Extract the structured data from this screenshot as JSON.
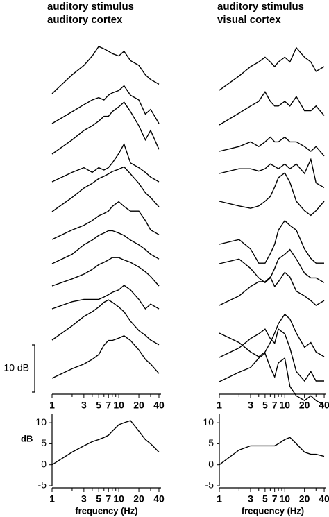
{
  "chart_data": [
    {
      "type": "line",
      "title": "auditory stimulus",
      "subtitle": "auditory cortex",
      "xscale": "log",
      "xlim": [
        1,
        43
      ],
      "xticks": [
        1,
        3,
        5,
        7,
        10,
        20,
        40
      ],
      "xminorticks": [
        2,
        4,
        6,
        8,
        9,
        30
      ],
      "color": "#000000",
      "scale_bar": {
        "value": 10,
        "label": "10 dB"
      },
      "x": [
        1,
        2,
        3,
        4,
        5,
        6,
        7,
        8,
        10,
        12,
        15,
        20,
        25,
        30,
        40
      ],
      "series": [
        {
          "values": [
            0,
            4,
            6,
            8,
            10,
            9.5,
            9,
            8.5,
            8,
            9,
            7,
            6,
            4,
            3,
            2
          ]
        },
        {
          "values": [
            0,
            2.5,
            4,
            5,
            5.5,
            5,
            6,
            6.5,
            7,
            8,
            6,
            5,
            2,
            3,
            0
          ]
        },
        {
          "values": [
            0,
            3,
            5,
            6,
            7,
            8,
            8,
            9,
            10,
            11,
            9,
            6,
            3,
            5,
            1
          ]
        },
        {
          "values": [
            0,
            2,
            3,
            2,
            3,
            2.5,
            3,
            4,
            6,
            8,
            4,
            3,
            2,
            1,
            0
          ]
        },
        {
          "values": [
            0,
            3,
            5,
            6,
            7,
            7.5,
            8,
            8.5,
            9,
            9.5,
            8,
            6,
            4,
            3,
            1
          ]
        },
        {
          "values": [
            0,
            2,
            3,
            4,
            5,
            5.5,
            6,
            7,
            8,
            7,
            6,
            6,
            4,
            2,
            1
          ]
        },
        {
          "values": [
            0,
            2,
            4,
            5,
            6,
            6.5,
            7,
            7,
            6.5,
            6,
            5,
            4,
            3,
            2,
            1
          ]
        },
        {
          "values": [
            0,
            1.5,
            2.5,
            3.5,
            4.5,
            5,
            5.5,
            6,
            6,
            5.5,
            5,
            4,
            3,
            2,
            0
          ]
        },
        {
          "values": [
            0,
            1.5,
            2,
            2,
            2,
            2.5,
            3,
            3.5,
            4,
            5,
            4,
            2,
            0,
            1,
            0
          ]
        },
        {
          "values": [
            0,
            3,
            5,
            6,
            7,
            8,
            8.5,
            8,
            7,
            6,
            4,
            2,
            1,
            0,
            -1
          ]
        },
        {
          "values": [
            0,
            2,
            3,
            4,
            5,
            7,
            8,
            8,
            8.5,
            9,
            8,
            6,
            4,
            3,
            1
          ]
        }
      ]
    },
    {
      "type": "line",
      "title": "auditory stimulus",
      "subtitle": "visual cortex",
      "xscale": "log",
      "xlim": [
        1,
        43
      ],
      "xticks": [
        1,
        3,
        5,
        7,
        10,
        20,
        40
      ],
      "xminorticks": [
        2,
        4,
        6,
        8,
        9,
        30
      ],
      "color": "#000000",
      "x": [
        1,
        2,
        3,
        4,
        5,
        6,
        7,
        8,
        10,
        12,
        15,
        20,
        25,
        30,
        40
      ],
      "series": [
        {
          "values": [
            0,
            3,
            5,
            6,
            7,
            6,
            5,
            6,
            7,
            6,
            9,
            7,
            6,
            4,
            5
          ]
        },
        {
          "values": [
            0,
            2.5,
            4,
            5,
            7,
            5,
            4,
            4,
            5,
            4,
            6,
            3,
            3,
            4,
            2
          ]
        },
        {
          "values": [
            0,
            1,
            2,
            1,
            2,
            3,
            2,
            2,
            3,
            2,
            2,
            1,
            0,
            1,
            -1
          ]
        },
        {
          "values": [
            0,
            1,
            1,
            0.5,
            1,
            2,
            1.5,
            1,
            2,
            1,
            2,
            0,
            3,
            -2,
            -3
          ]
        },
        {
          "values": [
            0,
            -1,
            -1.5,
            -1,
            0,
            1,
            3,
            5,
            6,
            4,
            0,
            -2,
            -3,
            -2,
            0
          ]
        },
        {
          "values": [
            0,
            1,
            -1,
            -4,
            -4,
            -2,
            0,
            3,
            5,
            4,
            3,
            -1,
            -3,
            -4,
            -4
          ]
        },
        {
          "values": [
            0,
            1,
            -1,
            -3,
            -4,
            -3,
            -1,
            1,
            2,
            3,
            1,
            -2,
            -3,
            -3,
            -4
          ]
        },
        {
          "values": [
            0,
            2,
            4,
            5,
            5,
            6,
            4,
            5,
            7,
            6,
            3,
            2,
            1,
            0,
            1
          ]
        },
        {
          "values": [
            0,
            -2,
            -4,
            -5,
            -4,
            -2,
            0,
            2,
            4,
            3,
            0,
            -3,
            -2,
            -4,
            -5
          ]
        },
        {
          "values": [
            0,
            2,
            4,
            5,
            6,
            4,
            3,
            6,
            5,
            2,
            -3,
            -5,
            -3,
            -5,
            -5
          ]
        },
        {
          "values": [
            0,
            2,
            3,
            5,
            6,
            3,
            1,
            4,
            5,
            -1,
            -3,
            -4,
            -3,
            -4,
            -5
          ]
        }
      ]
    },
    {
      "type": "line",
      "xscale": "log",
      "xlim": [
        1,
        43
      ],
      "ylim": [
        -5,
        12
      ],
      "ylabel": "dB",
      "xlabel": "frequency (Hz)",
      "xticks": [
        1,
        3,
        5,
        7,
        10,
        20,
        40
      ],
      "xminorticks": [
        2,
        4,
        6,
        8,
        9,
        30
      ],
      "yticks": [
        -5,
        0,
        5,
        10
      ],
      "color": "#000000",
      "x": [
        1,
        2,
        3,
        4,
        5,
        6,
        7,
        8,
        10,
        12,
        15,
        20,
        25,
        30,
        40
      ],
      "series": [
        {
          "values": [
            0,
            3,
            4.5,
            5.5,
            6,
            6.5,
            7,
            8,
            9.5,
            10,
            10.5,
            8,
            6,
            5,
            3
          ]
        }
      ]
    },
    {
      "type": "line",
      "xscale": "log",
      "xlim": [
        1,
        43
      ],
      "ylim": [
        -5,
        12
      ],
      "xlabel": "frequency (Hz)",
      "xticks": [
        1,
        3,
        5,
        7,
        10,
        20,
        40
      ],
      "xminorticks": [
        2,
        4,
        6,
        8,
        9,
        30
      ],
      "yticks": [
        -5,
        0,
        5,
        10
      ],
      "color": "#000000",
      "x": [
        1,
        2,
        3,
        4,
        5,
        6,
        7,
        8,
        10,
        12,
        15,
        20,
        25,
        30,
        40
      ],
      "series": [
        {
          "values": [
            0,
            3.5,
            4.5,
            4.5,
            4.5,
            4.5,
            4.5,
            5,
            6,
            6.5,
            5,
            3,
            2.5,
            2.5,
            2
          ]
        }
      ]
    }
  ]
}
